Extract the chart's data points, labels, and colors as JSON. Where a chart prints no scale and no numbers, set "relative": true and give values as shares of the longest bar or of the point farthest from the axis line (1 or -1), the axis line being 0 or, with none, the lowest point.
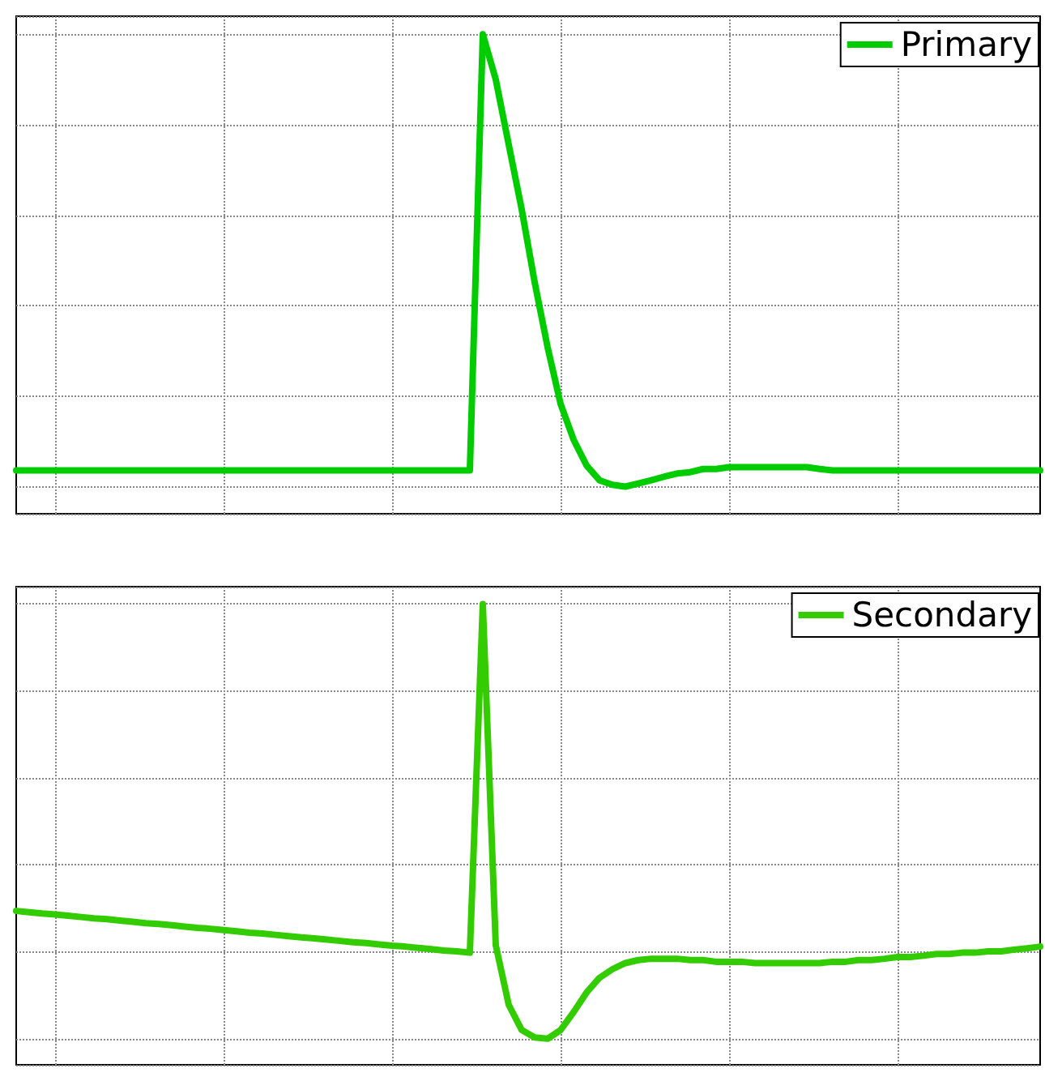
{
  "chart_data": [
    {
      "type": "line",
      "relative": true,
      "grid": true,
      "legend": "top right",
      "marker": "none",
      "line_style": "solid",
      "categories": [
        null,
        null,
        null,
        null,
        null,
        null,
        null,
        null,
        null,
        null,
        null,
        null,
        null,
        null,
        null,
        null,
        null,
        null,
        null,
        null,
        null,
        null,
        null,
        null,
        null,
        null,
        null,
        null,
        null,
        null,
        null,
        null,
        null,
        null,
        null,
        null,
        null,
        null,
        null,
        null,
        null,
        null,
        null,
        null,
        null,
        null,
        null,
        null,
        null,
        null,
        null,
        null,
        null,
        null,
        null,
        null,
        null,
        null,
        null,
        null,
        null,
        null,
        null,
        null,
        null,
        null,
        null,
        null,
        null,
        null,
        null,
        null,
        null,
        null,
        null,
        null,
        null,
        null,
        null,
        null
      ],
      "series": [
        {
          "name": "Primary",
          "color": "#00cc00",
          "values": [
            0.036,
            0.036,
            0.036,
            0.036,
            0.036,
            0.036,
            0.036,
            0.036,
            0.036,
            0.036,
            0.036,
            0.036,
            0.036,
            0.036,
            0.036,
            0.036,
            0.036,
            0.036,
            0.036,
            0.036,
            0.036,
            0.036,
            0.036,
            0.036,
            0.036,
            0.036,
            0.036,
            0.036,
            0.036,
            0.036,
            0.036,
            0.036,
            0.036,
            0.036,
            0.036,
            0.036,
            1,
            0.9,
            0.756,
            0.613,
            0.452,
            0.308,
            0.183,
            0.104,
            0.047,
            0.014,
            0.004,
            0,
            0.007,
            0.014,
            0.022,
            0.029,
            0.032,
            0.039,
            0.039,
            0.043,
            0.043,
            0.043,
            0.043,
            0.043,
            0.043,
            0.043,
            0.039,
            0.036,
            0.036,
            0.036,
            0.036,
            0.036,
            0.036,
            0.036,
            0.036,
            0.036,
            0.036,
            0.036,
            0.036,
            0.036,
            0.036,
            0.036,
            0.036,
            0.036
          ]
        }
      ]
    },
    {
      "type": "line",
      "relative": true,
      "grid": true,
      "legend": "top right",
      "marker": "none",
      "line_style": "solid",
      "categories": [
        null,
        null,
        null,
        null,
        null,
        null,
        null,
        null,
        null,
        null,
        null,
        null,
        null,
        null,
        null,
        null,
        null,
        null,
        null,
        null,
        null,
        null,
        null,
        null,
        null,
        null,
        null,
        null,
        null,
        null,
        null,
        null,
        null,
        null,
        null,
        null,
        null,
        null,
        null,
        null,
        null,
        null,
        null,
        null,
        null,
        null,
        null,
        null,
        null,
        null,
        null,
        null,
        null,
        null,
        null,
        null,
        null,
        null,
        null,
        null,
        null,
        null,
        null,
        null,
        null,
        null,
        null,
        null,
        null,
        null,
        null,
        null,
        null,
        null,
        null,
        null,
        null,
        null,
        null,
        null
      ],
      "series": [
        {
          "name": "Secondary",
          "color": "#33cc00",
          "values": [
            0.294,
            0.291,
            0.288,
            0.286,
            0.283,
            0.28,
            0.277,
            0.275,
            0.272,
            0.269,
            0.266,
            0.264,
            0.261,
            0.258,
            0.255,
            0.253,
            0.25,
            0.247,
            0.244,
            0.242,
            0.239,
            0.236,
            0.233,
            0.231,
            0.228,
            0.225,
            0.222,
            0.22,
            0.217,
            0.214,
            0.212,
            0.209,
            0.206,
            0.203,
            0.201,
            0.198,
            1,
            0.215,
            0.078,
            0.02,
            0.003,
            0,
            0.02,
            0.061,
            0.106,
            0.14,
            0.16,
            0.174,
            0.181,
            0.184,
            0.184,
            0.184,
            0.181,
            0.181,
            0.177,
            0.177,
            0.177,
            0.174,
            0.174,
            0.174,
            0.174,
            0.174,
            0.174,
            0.177,
            0.177,
            0.181,
            0.181,
            0.184,
            0.188,
            0.188,
            0.191,
            0.195,
            0.195,
            0.198,
            0.198,
            0.201,
            0.201,
            0.205,
            0.208,
            0.212
          ]
        }
      ]
    }
  ]
}
